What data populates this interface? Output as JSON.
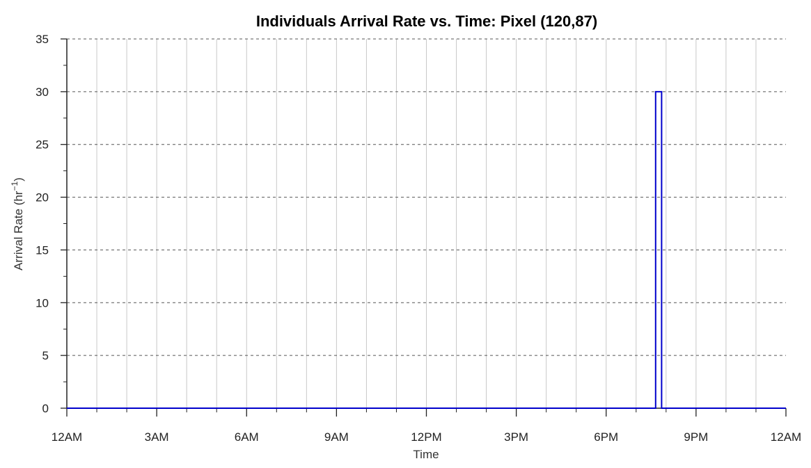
{
  "chart_data": {
    "type": "line",
    "title": "Individuals Arrival Rate vs. Time: Pixel (120,87)",
    "xlabel": "Time",
    "ylabel": "Arrival Rate (hr",
    "ylabel_superscript": "−1",
    "ylabel_close": ")",
    "x_tick_labels": [
      "12AM",
      "3AM",
      "6AM",
      "9AM",
      "12PM",
      "3PM",
      "6PM",
      "9PM",
      "12AM"
    ],
    "x_tick_hours": [
      0,
      3,
      6,
      9,
      12,
      15,
      18,
      21,
      24
    ],
    "xlim": [
      0,
      24
    ],
    "ylim": [
      0,
      35
    ],
    "y_ticks": [
      0,
      5,
      10,
      15,
      20,
      25,
      30,
      35
    ],
    "y_minor_step": 2.5,
    "x_grid_step_hours": 1,
    "grid": {
      "x": "solid-light",
      "y": "dashed"
    },
    "line_color": "#0000cc",
    "series": [
      {
        "x_hours": [
          0,
          19.65,
          19.65,
          19.85,
          19.85,
          24
        ],
        "values": [
          0,
          0,
          30,
          30,
          0,
          0
        ]
      }
    ]
  }
}
